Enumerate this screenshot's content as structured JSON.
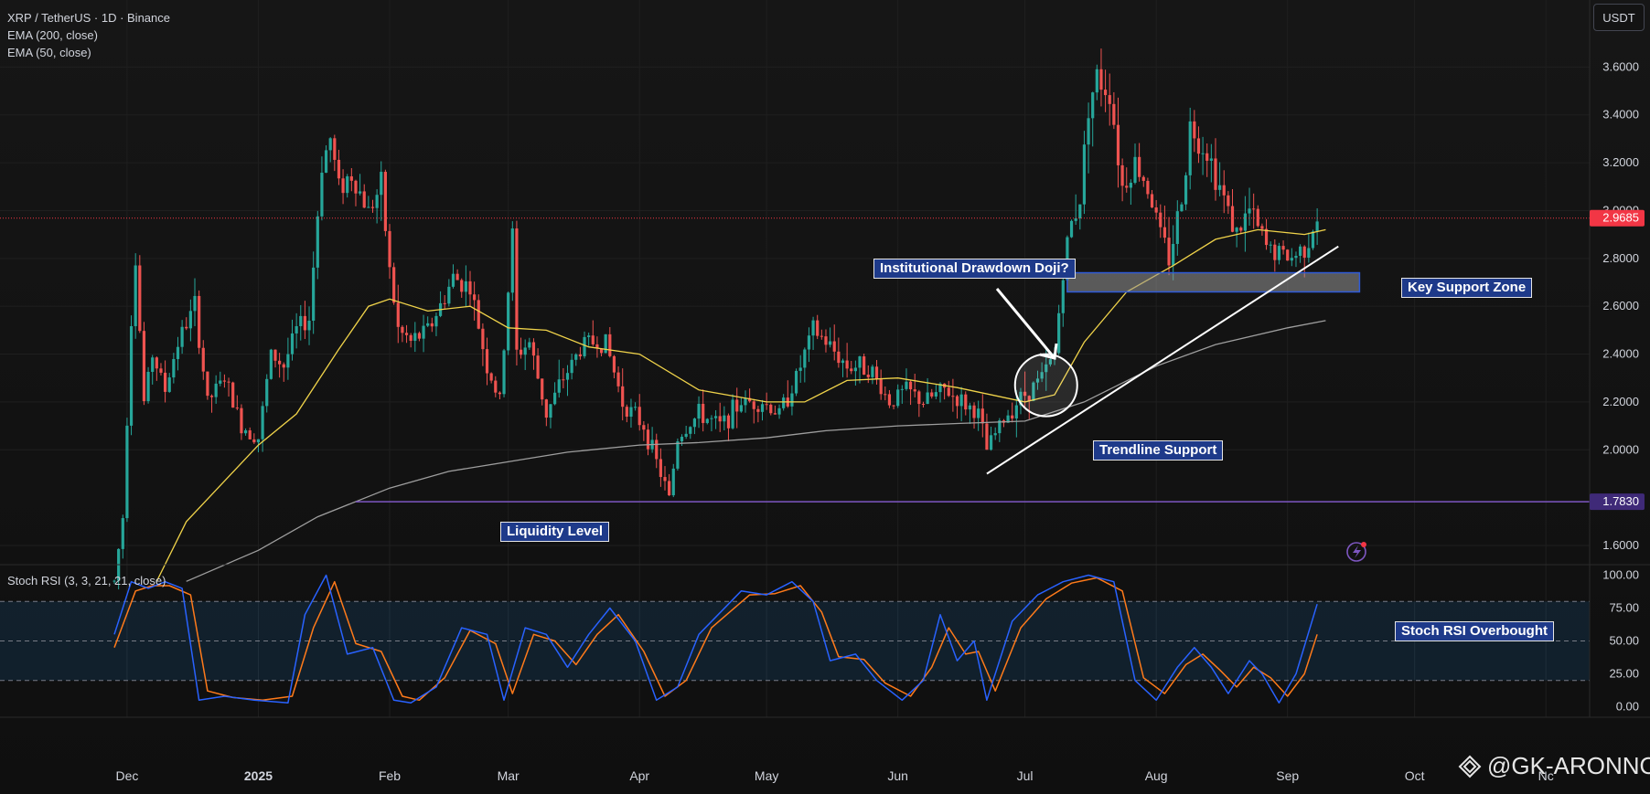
{
  "header": {
    "symbol_line": "XRP / TetherUS · 1D · Binance",
    "indicators": [
      "EMA (200, close)",
      "EMA (50, close)"
    ],
    "currency_button": "USDT"
  },
  "rsi_panel": {
    "label": "Stoch RSI (3, 3, 21, 21, close)"
  },
  "watermark": {
    "text": "@GK-ARONNO",
    "logo_icon": "diamond-logo-icon"
  },
  "annotations": {
    "institutional": "Institutional Drawdown Doji?",
    "key_support": "Key Support Zone",
    "trendline": "Trendline Support",
    "liquidity": "Liquidity Level",
    "stoch_overbought": "Stoch RSI Overbought"
  },
  "colors": {
    "up": "#26a69a",
    "down": "#ef5350",
    "ema50": "#f0d34a",
    "ema200": "#9e9e9e",
    "liquidity": "#7e57c2",
    "current_price": "#f23645",
    "stoch_k": "#2962ff",
    "stoch_d": "#ff7a1a",
    "annotation_bg": "#1e3a8a"
  },
  "chart_data": {
    "type": "candlestick",
    "x_axis_labels": [
      "Dec",
      "2025",
      "Feb",
      "Mar",
      "Apr",
      "May",
      "Jun",
      "Jul",
      "Aug",
      "Sep",
      "Oct",
      "Nc"
    ],
    "y_axis": {
      "ticks": [
        "3.6000",
        "3.4000",
        "3.2000",
        "3.0000",
        "2.8000",
        "2.6000",
        "2.4000",
        "2.2000",
        "2.0000",
        "1.6000"
      ],
      "ylim": [
        1.52,
        3.88
      ]
    },
    "current_price": "2.9685",
    "liquidity_price": "1.7830",
    "liquidity_value": 1.783,
    "key_support_zone": [
      2.66,
      2.74
    ],
    "price_path": [
      [
        "2024-11-28",
        1.45
      ],
      [
        "2024-11-30",
        1.72
      ],
      [
        "2024-12-02",
        2.55
      ],
      [
        "2024-12-03",
        2.8
      ],
      [
        "2024-12-05",
        2.2
      ],
      [
        "2024-12-07",
        2.4
      ],
      [
        "2024-12-10",
        2.25
      ],
      [
        "2024-12-13",
        2.45
      ],
      [
        "2024-12-17",
        2.6
      ],
      [
        "2024-12-20",
        2.2
      ],
      [
        "2024-12-24",
        2.3
      ],
      [
        "2024-12-28",
        2.1
      ],
      [
        "2025-01-01",
        2.05
      ],
      [
        "2025-01-04",
        2.4
      ],
      [
        "2025-01-07",
        2.35
      ],
      [
        "2025-01-10",
        2.5
      ],
      [
        "2025-01-13",
        2.55
      ],
      [
        "2025-01-16",
        3.2
      ],
      [
        "2025-01-18",
        3.3
      ],
      [
        "2025-01-20",
        3.1
      ],
      [
        "2025-01-23",
        3.15
      ],
      [
        "2025-01-27",
        3.0
      ],
      [
        "2025-01-30",
        3.1
      ],
      [
        "2025-02-01",
        2.75
      ],
      [
        "2025-02-03",
        2.5
      ],
      [
        "2025-02-06",
        2.45
      ],
      [
        "2025-02-10",
        2.5
      ],
      [
        "2025-02-13",
        2.6
      ],
      [
        "2025-02-16",
        2.72
      ],
      [
        "2025-02-20",
        2.68
      ],
      [
        "2025-02-24",
        2.35
      ],
      [
        "2025-02-27",
        2.2
      ],
      [
        "2025-03-02",
        2.9
      ],
      [
        "2025-03-03",
        2.4
      ],
      [
        "2025-03-06",
        2.45
      ],
      [
        "2025-03-10",
        2.15
      ],
      [
        "2025-03-14",
        2.3
      ],
      [
        "2025-03-19",
        2.45
      ],
      [
        "2025-03-24",
        2.45
      ],
      [
        "2025-03-28",
        2.2
      ],
      [
        "2025-04-02",
        2.1
      ],
      [
        "2025-04-06",
        1.9
      ],
      [
        "2025-04-08",
        1.8
      ],
      [
        "2025-04-10",
        2.05
      ],
      [
        "2025-04-15",
        2.15
      ],
      [
        "2025-04-20",
        2.1
      ],
      [
        "2025-04-25",
        2.2
      ],
      [
        "2025-04-30",
        2.2
      ],
      [
        "2025-05-04",
        2.15
      ],
      [
        "2025-05-08",
        2.3
      ],
      [
        "2025-05-12",
        2.5
      ],
      [
        "2025-05-15",
        2.45
      ],
      [
        "2025-05-20",
        2.35
      ],
      [
        "2025-05-25",
        2.35
      ],
      [
        "2025-05-30",
        2.2
      ],
      [
        "2025-06-03",
        2.25
      ],
      [
        "2025-06-07",
        2.2
      ],
      [
        "2025-06-12",
        2.25
      ],
      [
        "2025-06-16",
        2.2
      ],
      [
        "2025-06-20",
        2.15
      ],
      [
        "2025-06-22",
        2.0
      ],
      [
        "2025-06-25",
        2.1
      ],
      [
        "2025-06-29",
        2.2
      ],
      [
        "2025-07-02",
        2.25
      ],
      [
        "2025-07-05",
        2.3
      ],
      [
        "2025-07-08",
        2.4
      ],
      [
        "2025-07-10",
        2.75
      ],
      [
        "2025-07-12",
        2.95
      ],
      [
        "2025-07-14",
        3.05
      ],
      [
        "2025-07-16",
        3.45
      ],
      [
        "2025-07-18",
        3.55
      ],
      [
        "2025-07-21",
        3.5
      ],
      [
        "2025-07-24",
        3.1
      ],
      [
        "2025-07-27",
        3.2
      ],
      [
        "2025-07-30",
        3.1
      ],
      [
        "2025-08-02",
        2.9
      ],
      [
        "2025-08-04",
        2.8
      ],
      [
        "2025-08-07",
        3.05
      ],
      [
        "2025-08-09",
        3.35
      ],
      [
        "2025-08-13",
        3.25
      ],
      [
        "2025-08-16",
        3.1
      ],
      [
        "2025-08-20",
        2.9
      ],
      [
        "2025-08-23",
        3.0
      ],
      [
        "2025-08-27",
        2.85
      ],
      [
        "2025-08-30",
        2.82
      ],
      [
        "2025-09-02",
        2.8
      ],
      [
        "2025-09-05",
        2.85
      ],
      [
        "2025-09-08",
        2.97
      ]
    ],
    "ema200_path": [
      [
        "2024-12-15",
        1.45
      ],
      [
        "2025-01-01",
        1.58
      ],
      [
        "2025-01-15",
        1.72
      ],
      [
        "2025-02-01",
        1.84
      ],
      [
        "2025-02-15",
        1.91
      ],
      [
        "2025-03-01",
        1.95
      ],
      [
        "2025-03-15",
        1.99
      ],
      [
        "2025-04-01",
        2.02
      ],
      [
        "2025-04-15",
        2.03
      ],
      [
        "2025-05-01",
        2.05
      ],
      [
        "2025-05-15",
        2.08
      ],
      [
        "2025-06-01",
        2.1
      ],
      [
        "2025-06-15",
        2.11
      ],
      [
        "2025-07-01",
        2.12
      ],
      [
        "2025-07-15",
        2.2
      ],
      [
        "2025-08-01",
        2.35
      ],
      [
        "2025-08-15",
        2.44
      ],
      [
        "2025-09-01",
        2.51
      ],
      [
        "2025-09-10",
        2.54
      ]
    ],
    "ema50_path": [
      [
        "2024-12-08",
        1.45
      ],
      [
        "2024-12-15",
        1.7
      ],
      [
        "2025-01-01",
        2.02
      ],
      [
        "2025-01-10",
        2.15
      ],
      [
        "2025-01-20",
        2.42
      ],
      [
        "2025-01-27",
        2.6
      ],
      [
        "2025-02-01",
        2.63
      ],
      [
        "2025-02-10",
        2.58
      ],
      [
        "2025-02-20",
        2.6
      ],
      [
        "2025-03-01",
        2.51
      ],
      [
        "2025-03-10",
        2.5
      ],
      [
        "2025-03-20",
        2.43
      ],
      [
        "2025-04-01",
        2.4
      ],
      [
        "2025-04-15",
        2.25
      ],
      [
        "2025-05-01",
        2.2
      ],
      [
        "2025-05-10",
        2.2
      ],
      [
        "2025-05-20",
        2.29
      ],
      [
        "2025-06-01",
        2.3
      ],
      [
        "2025-06-15",
        2.26
      ],
      [
        "2025-07-01",
        2.2
      ],
      [
        "2025-07-08",
        2.23
      ],
      [
        "2025-07-15",
        2.45
      ],
      [
        "2025-07-25",
        2.66
      ],
      [
        "2025-08-05",
        2.77
      ],
      [
        "2025-08-15",
        2.88
      ],
      [
        "2025-08-25",
        2.92
      ],
      [
        "2025-09-05",
        2.9
      ],
      [
        "2025-09-10",
        2.92
      ]
    ],
    "trendline": [
      [
        "2025-06-22",
        1.9
      ],
      [
        "2025-09-13",
        2.85
      ]
    ],
    "doji_circle": [
      "2025-07-06",
      2.27
    ],
    "stoch_rsi": {
      "y_ticks": [
        "100.00",
        "75.00",
        "50.00",
        "25.00",
        "0.00"
      ],
      "ylim": [
        -8,
        108
      ],
      "bands": {
        "upper": 80,
        "middle": 50,
        "lower": 20
      },
      "k_path": [
        [
          "2024-11-28",
          55
        ],
        [
          "2024-12-02",
          95
        ],
        [
          "2024-12-06",
          90
        ],
        [
          "2024-12-10",
          95
        ],
        [
          "2024-12-14",
          90
        ],
        [
          "2024-12-18",
          5
        ],
        [
          "2024-12-24",
          8
        ],
        [
          "2024-12-31",
          5
        ],
        [
          "2025-01-08",
          3
        ],
        [
          "2025-01-12",
          70
        ],
        [
          "2025-01-17",
          100
        ],
        [
          "2025-01-22",
          40
        ],
        [
          "2025-01-28",
          45
        ],
        [
          "2025-02-02",
          5
        ],
        [
          "2025-02-06",
          3
        ],
        [
          "2025-02-12",
          15
        ],
        [
          "2025-02-18",
          60
        ],
        [
          "2025-02-24",
          55
        ],
        [
          "2025-02-28",
          5
        ],
        [
          "2025-03-05",
          60
        ],
        [
          "2025-03-10",
          55
        ],
        [
          "2025-03-15",
          30
        ],
        [
          "2025-03-20",
          55
        ],
        [
          "2025-03-25",
          75
        ],
        [
          "2025-03-31",
          50
        ],
        [
          "2025-04-05",
          5
        ],
        [
          "2025-04-10",
          15
        ],
        [
          "2025-04-15",
          55
        ],
        [
          "2025-04-25",
          88
        ],
        [
          "2025-05-01",
          85
        ],
        [
          "2025-05-07",
          95
        ],
        [
          "2025-05-12",
          80
        ],
        [
          "2025-05-16",
          35
        ],
        [
          "2025-05-22",
          40
        ],
        [
          "2025-05-27",
          20
        ],
        [
          "2025-06-02",
          5
        ],
        [
          "2025-06-07",
          20
        ],
        [
          "2025-06-11",
          70
        ],
        [
          "2025-06-15",
          35
        ],
        [
          "2025-06-19",
          50
        ],
        [
          "2025-06-22",
          5
        ],
        [
          "2025-06-28",
          65
        ],
        [
          "2025-07-04",
          85
        ],
        [
          "2025-07-10",
          95
        ],
        [
          "2025-07-16",
          100
        ],
        [
          "2025-07-22",
          95
        ],
        [
          "2025-07-27",
          20
        ],
        [
          "2025-08-01",
          5
        ],
        [
          "2025-08-06",
          30
        ],
        [
          "2025-08-10",
          45
        ],
        [
          "2025-08-14",
          30
        ],
        [
          "2025-08-18",
          10
        ],
        [
          "2025-08-23",
          35
        ],
        [
          "2025-08-26",
          25
        ],
        [
          "2025-08-30",
          3
        ],
        [
          "2025-09-03",
          25
        ],
        [
          "2025-09-08",
          78
        ]
      ],
      "d_path": [
        [
          "2024-11-28",
          45
        ],
        [
          "2024-12-03",
          88
        ],
        [
          "2024-12-07",
          92
        ],
        [
          "2024-12-11",
          92
        ],
        [
          "2024-12-16",
          85
        ],
        [
          "2024-12-20",
          12
        ],
        [
          "2024-12-26",
          7
        ],
        [
          "2025-01-02",
          5
        ],
        [
          "2025-01-09",
          8
        ],
        [
          "2025-01-14",
          60
        ],
        [
          "2025-01-19",
          95
        ],
        [
          "2025-01-24",
          48
        ],
        [
          "2025-01-30",
          42
        ],
        [
          "2025-02-04",
          8
        ],
        [
          "2025-02-08",
          5
        ],
        [
          "2025-02-14",
          22
        ],
        [
          "2025-02-20",
          58
        ],
        [
          "2025-02-26",
          48
        ],
        [
          "2025-03-02",
          10
        ],
        [
          "2025-03-07",
          55
        ],
        [
          "2025-03-12",
          50
        ],
        [
          "2025-03-17",
          32
        ],
        [
          "2025-03-22",
          55
        ],
        [
          "2025-03-27",
          70
        ],
        [
          "2025-04-02",
          42
        ],
        [
          "2025-04-07",
          8
        ],
        [
          "2025-04-12",
          20
        ],
        [
          "2025-04-18",
          60
        ],
        [
          "2025-04-27",
          85
        ],
        [
          "2025-05-03",
          86
        ],
        [
          "2025-05-09",
          92
        ],
        [
          "2025-05-14",
          72
        ],
        [
          "2025-05-18",
          38
        ],
        [
          "2025-05-24",
          36
        ],
        [
          "2025-05-29",
          18
        ],
        [
          "2025-06-04",
          8
        ],
        [
          "2025-06-09",
          30
        ],
        [
          "2025-06-13",
          60
        ],
        [
          "2025-06-17",
          40
        ],
        [
          "2025-06-20",
          42
        ],
        [
          "2025-06-24",
          12
        ],
        [
          "2025-06-30",
          60
        ],
        [
          "2025-07-06",
          82
        ],
        [
          "2025-07-12",
          94
        ],
        [
          "2025-07-18",
          98
        ],
        [
          "2025-07-24",
          88
        ],
        [
          "2025-07-29",
          22
        ],
        [
          "2025-08-03",
          10
        ],
        [
          "2025-08-08",
          32
        ],
        [
          "2025-08-12",
          40
        ],
        [
          "2025-08-16",
          28
        ],
        [
          "2025-08-20",
          15
        ],
        [
          "2025-08-24",
          30
        ],
        [
          "2025-08-28",
          22
        ],
        [
          "2025-09-01",
          8
        ],
        [
          "2025-09-05",
          25
        ],
        [
          "2025-09-08",
          55
        ]
      ]
    }
  }
}
